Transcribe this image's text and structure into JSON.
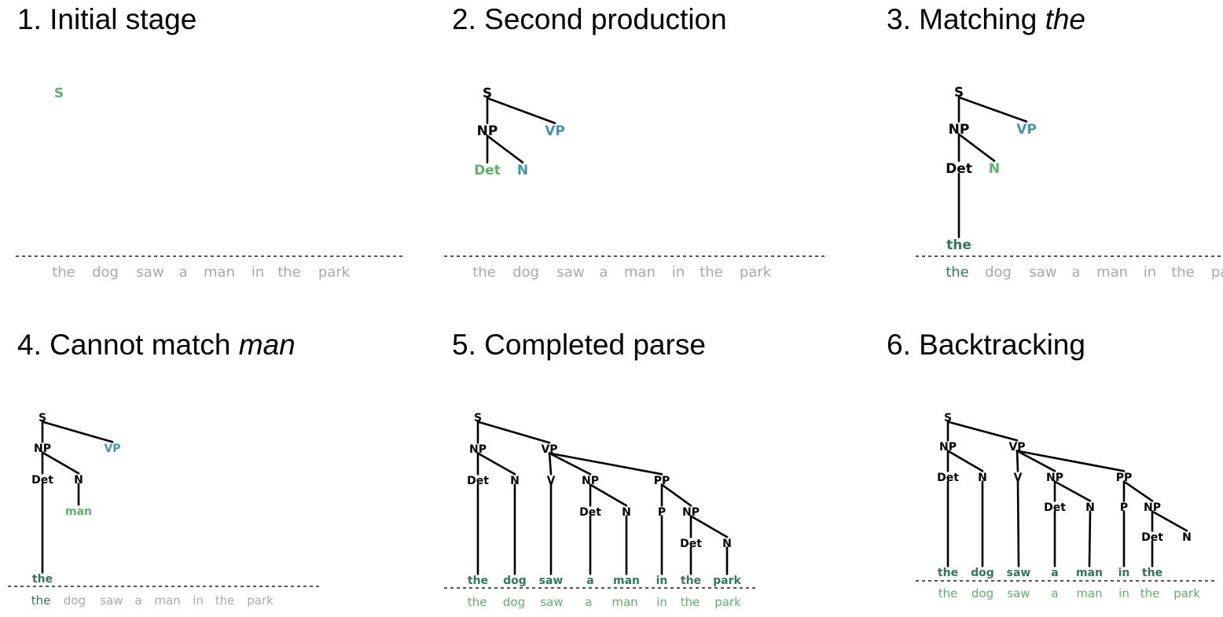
{
  "colors": {
    "black": "#000000",
    "teal": "#3f9aa6",
    "green": "#5cb36b",
    "darkgreen": "#2e7a5d",
    "grey": "#a8a8a8"
  },
  "panels": [
    {
      "title": "1. Initial stage",
      "title_parts": [
        {
          "text": "1. Initial stage",
          "italic": false
        }
      ],
      "words": [
        "the",
        "dog",
        "saw",
        "a",
        "man",
        "in",
        "the",
        "park"
      ],
      "word_colors": [
        "grey",
        "grey",
        "grey",
        "grey",
        "grey",
        "grey",
        "grey",
        "grey"
      ],
      "nodes": [
        {
          "label": "S",
          "color": "green"
        }
      ],
      "edges": []
    },
    {
      "title": "2. Second production",
      "title_parts": [
        {
          "text": "2. Second production",
          "italic": false
        }
      ],
      "words": [
        "the",
        "dog",
        "saw",
        "a",
        "man",
        "in",
        "the",
        "park"
      ],
      "word_colors": [
        "grey",
        "grey",
        "grey",
        "grey",
        "grey",
        "grey",
        "grey",
        "grey"
      ],
      "nodes": [
        {
          "label": "S",
          "color": "black"
        },
        {
          "label": "NP",
          "color": "black"
        },
        {
          "label": "VP",
          "color": "teal"
        },
        {
          "label": "Det",
          "color": "green"
        },
        {
          "label": "N",
          "color": "teal"
        }
      ],
      "edges": [
        [
          0,
          1
        ],
        [
          0,
          2
        ],
        [
          1,
          3
        ],
        [
          1,
          4
        ]
      ]
    },
    {
      "title": "3. Matching the",
      "title_parts": [
        {
          "text": "3. Matching ",
          "italic": false
        },
        {
          "text": "the",
          "italic": true
        }
      ],
      "words": [
        "the",
        "dog",
        "saw",
        "a",
        "man",
        "in",
        "the",
        "park"
      ],
      "word_colors": [
        "darkgreen",
        "grey",
        "grey",
        "grey",
        "grey",
        "grey",
        "grey",
        "grey"
      ],
      "nodes": [
        {
          "label": "S",
          "color": "black"
        },
        {
          "label": "NP",
          "color": "black"
        },
        {
          "label": "VP",
          "color": "teal"
        },
        {
          "label": "Det",
          "color": "black"
        },
        {
          "label": "N",
          "color": "green"
        },
        {
          "label": "the",
          "color": "darkgreen"
        }
      ],
      "edges": [
        [
          0,
          1
        ],
        [
          0,
          2
        ],
        [
          1,
          3
        ],
        [
          1,
          4
        ],
        [
          3,
          5
        ]
      ]
    },
    {
      "title": "4. Cannot match man",
      "title_parts": [
        {
          "text": "4. Cannot match ",
          "italic": false
        },
        {
          "text": "man",
          "italic": true
        }
      ],
      "words": [
        "the",
        "dog",
        "saw",
        "a",
        "man",
        "in",
        "the",
        "park"
      ],
      "word_colors": [
        "darkgreen",
        "grey",
        "grey",
        "grey",
        "grey",
        "grey",
        "grey",
        "grey"
      ],
      "nodes": [
        {
          "label": "S",
          "color": "black"
        },
        {
          "label": "NP",
          "color": "black"
        },
        {
          "label": "VP",
          "color": "teal"
        },
        {
          "label": "Det",
          "color": "black"
        },
        {
          "label": "N",
          "color": "black"
        },
        {
          "label": "man",
          "color": "green"
        },
        {
          "label": "the",
          "color": "darkgreen"
        }
      ],
      "edges": [
        [
          0,
          1
        ],
        [
          0,
          2
        ],
        [
          1,
          3
        ],
        [
          1,
          4
        ],
        [
          4,
          5
        ],
        [
          3,
          6
        ]
      ]
    },
    {
      "title": "5. Completed parse",
      "title_parts": [
        {
          "text": "5. Completed parse",
          "italic": false
        }
      ],
      "words": [
        "the",
        "dog",
        "saw",
        "a",
        "man",
        "in",
        "the",
        "park"
      ],
      "word_colors": [
        "green",
        "green",
        "green",
        "green",
        "green",
        "green",
        "green",
        "green"
      ],
      "nodes": [
        {
          "label": "S",
          "color": "black"
        },
        {
          "label": "NP",
          "color": "black"
        },
        {
          "label": "VP",
          "color": "black"
        },
        {
          "label": "Det",
          "color": "black"
        },
        {
          "label": "N",
          "color": "black"
        },
        {
          "label": "V",
          "color": "black"
        },
        {
          "label": "NP",
          "color": "black"
        },
        {
          "label": "PP",
          "color": "black"
        },
        {
          "label": "Det",
          "color": "black"
        },
        {
          "label": "N",
          "color": "black"
        },
        {
          "label": "P",
          "color": "black"
        },
        {
          "label": "NP",
          "color": "black"
        },
        {
          "label": "Det",
          "color": "black"
        },
        {
          "label": "N",
          "color": "black"
        },
        {
          "label": "the",
          "color": "darkgreen"
        },
        {
          "label": "dog",
          "color": "darkgreen"
        },
        {
          "label": "saw",
          "color": "darkgreen"
        },
        {
          "label": "a",
          "color": "darkgreen"
        },
        {
          "label": "man",
          "color": "darkgreen"
        },
        {
          "label": "in",
          "color": "darkgreen"
        },
        {
          "label": "the",
          "color": "darkgreen"
        },
        {
          "label": "park",
          "color": "darkgreen"
        }
      ],
      "edges": [
        [
          0,
          1
        ],
        [
          0,
          2
        ],
        [
          1,
          3
        ],
        [
          1,
          4
        ],
        [
          2,
          5
        ],
        [
          2,
          6
        ],
        [
          2,
          7
        ],
        [
          6,
          8
        ],
        [
          6,
          9
        ],
        [
          7,
          10
        ],
        [
          7,
          11
        ],
        [
          11,
          12
        ],
        [
          11,
          13
        ],
        [
          3,
          14
        ],
        [
          4,
          15
        ],
        [
          5,
          16
        ],
        [
          8,
          17
        ],
        [
          9,
          18
        ],
        [
          10,
          19
        ],
        [
          12,
          20
        ],
        [
          13,
          21
        ]
      ]
    },
    {
      "title": "6. Backtracking",
      "title_parts": [
        {
          "text": "6. Backtracking",
          "italic": false
        }
      ],
      "words": [
        "the",
        "dog",
        "saw",
        "a",
        "man",
        "in",
        "the",
        "park"
      ],
      "word_colors": [
        "green",
        "green",
        "green",
        "green",
        "green",
        "green",
        "green",
        "green"
      ],
      "nodes": [
        {
          "label": "S",
          "color": "black"
        },
        {
          "label": "NP",
          "color": "black"
        },
        {
          "label": "VP",
          "color": "black"
        },
        {
          "label": "Det",
          "color": "black"
        },
        {
          "label": "N",
          "color": "black"
        },
        {
          "label": "V",
          "color": "black"
        },
        {
          "label": "NP",
          "color": "black"
        },
        {
          "label": "PP",
          "color": "black"
        },
        {
          "label": "Det",
          "color": "black"
        },
        {
          "label": "N",
          "color": "black"
        },
        {
          "label": "P",
          "color": "black"
        },
        {
          "label": "NP",
          "color": "black"
        },
        {
          "label": "Det",
          "color": "black"
        },
        {
          "label": "N",
          "color": "black"
        },
        {
          "label": "the",
          "color": "darkgreen"
        },
        {
          "label": "dog",
          "color": "darkgreen"
        },
        {
          "label": "saw",
          "color": "darkgreen"
        },
        {
          "label": "a",
          "color": "darkgreen"
        },
        {
          "label": "man",
          "color": "darkgreen"
        },
        {
          "label": "in",
          "color": "darkgreen"
        },
        {
          "label": "the",
          "color": "darkgreen"
        }
      ],
      "edges": [
        [
          0,
          1
        ],
        [
          0,
          2
        ],
        [
          1,
          3
        ],
        [
          1,
          4
        ],
        [
          2,
          5
        ],
        [
          2,
          6
        ],
        [
          2,
          7
        ],
        [
          6,
          8
        ],
        [
          6,
          9
        ],
        [
          7,
          10
        ],
        [
          7,
          11
        ],
        [
          11,
          12
        ],
        [
          11,
          13
        ],
        [
          3,
          14
        ],
        [
          4,
          15
        ],
        [
          5,
          16
        ],
        [
          8,
          17
        ],
        [
          9,
          18
        ],
        [
          10,
          19
        ],
        [
          12,
          20
        ]
      ]
    }
  ]
}
